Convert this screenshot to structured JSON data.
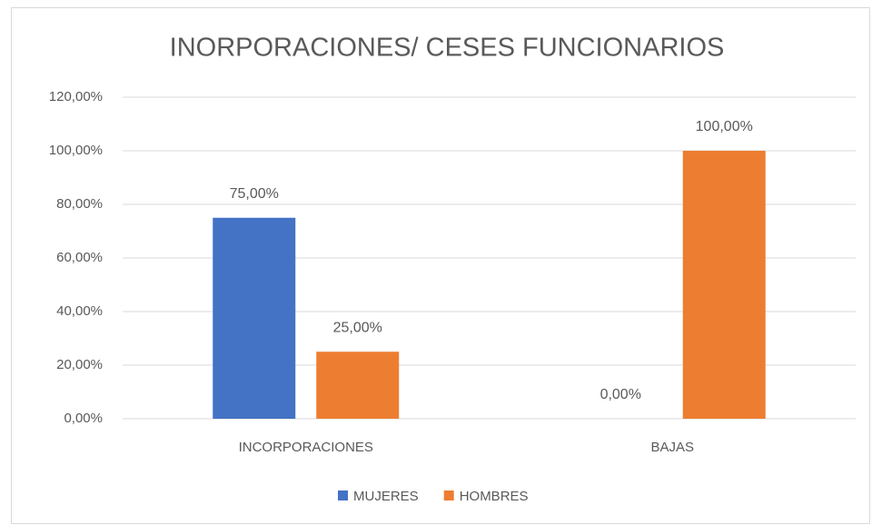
{
  "chart_data": {
    "type": "bar",
    "title": "INORPORACIONES/ CESES FUNCIONARIOS",
    "categories": [
      "INCORPORACIONES",
      "BAJAS"
    ],
    "series": [
      {
        "name": "MUJERES",
        "color": "#4472c4",
        "values": [
          75,
          0
        ],
        "value_labels": [
          "75,00%",
          "0,00%"
        ]
      },
      {
        "name": "HOMBRES",
        "color": "#ed7d31",
        "values": [
          25,
          100
        ],
        "value_labels": [
          "25,00%",
          "100,00%"
        ]
      }
    ],
    "ylim": [
      0,
      120
    ],
    "yticks": [
      {
        "value": 0,
        "label": "0,00%"
      },
      {
        "value": 20,
        "label": "20,00%"
      },
      {
        "value": 40,
        "label": "40,00%"
      },
      {
        "value": 60,
        "label": "60,00%"
      },
      {
        "value": 80,
        "label": "80,00%"
      },
      {
        "value": 100,
        "label": "100,00%"
      },
      {
        "value": 120,
        "label": "120,00%"
      }
    ],
    "grid": true,
    "legend": "bottom"
  }
}
